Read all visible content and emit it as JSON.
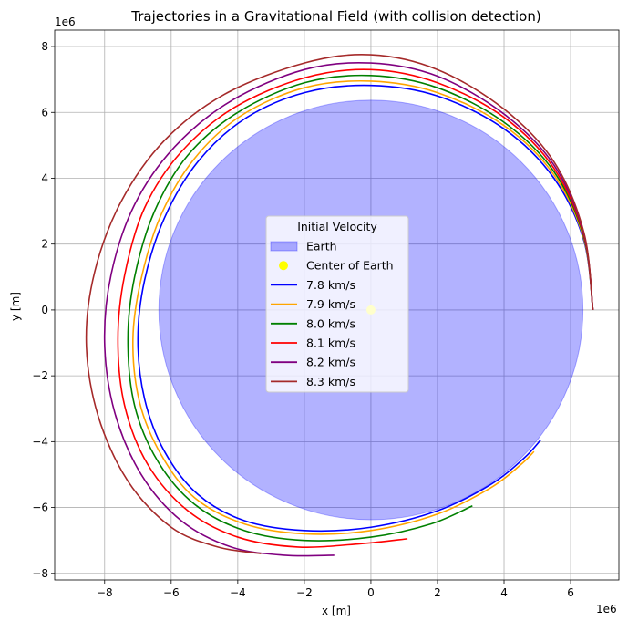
{
  "chart_data": {
    "type": "line",
    "title": "Trajectories in a Gravitational Field (with collision detection)",
    "xlabel": "x [m]",
    "ylabel": "y [m]",
    "x_offset_label": "1e6",
    "y_offset_label": "1e6",
    "xlim": [
      -9.5,
      7.45
    ],
    "ylim": [
      -8.2,
      8.5
    ],
    "x_ticks": [
      -8,
      -6,
      -4,
      -2,
      0,
      2,
      4,
      6
    ],
    "y_ticks": [
      -8,
      -6,
      -4,
      -2,
      0,
      2,
      4,
      6,
      8
    ],
    "x_tick_labels": [
      "−8",
      "−6",
      "−4",
      "−2",
      "0",
      "2",
      "4",
      "6"
    ],
    "y_tick_labels": [
      "−8",
      "−6",
      "−4",
      "−2",
      "0",
      "2",
      "4",
      "6",
      "8"
    ],
    "grid": true,
    "earth": {
      "name": "Earth",
      "center": [
        0,
        0
      ],
      "radius": 6.371,
      "color": "#0000ff",
      "alpha": 0.3
    },
    "center_marker": {
      "name": "Center of Earth",
      "x": 0,
      "y": 0,
      "color": "#ffff00"
    },
    "series": [
      {
        "name": "7.8 km/s",
        "color": "#0000ff",
        "x": [
          6.67,
          6.4,
          5.5,
          4.0,
          2.0,
          0.0,
          -2.0,
          -3.8,
          -5.2,
          -6.2,
          -6.8,
          -7.0,
          -6.8,
          -6.2,
          -5.2,
          -3.8,
          -2.0,
          0.0,
          2.0,
          3.6,
          4.6,
          5.1
        ],
        "y": [
          0.0,
          2.1,
          4.0,
          5.5,
          6.5,
          6.82,
          6.6,
          5.8,
          4.5,
          2.8,
          0.9,
          -0.9,
          -2.7,
          -4.3,
          -5.6,
          -6.4,
          -6.7,
          -6.6,
          -6.1,
          -5.3,
          -4.5,
          -3.95
        ]
      },
      {
        "name": "7.9 km/s",
        "color": "#ffa500",
        "x": [
          6.67,
          6.4,
          5.5,
          4.0,
          2.0,
          0.0,
          -2.0,
          -3.9,
          -5.3,
          -6.3,
          -6.9,
          -7.15,
          -6.95,
          -6.3,
          -5.3,
          -3.8,
          -2.0,
          0.0,
          2.0,
          3.6,
          4.5,
          4.9
        ],
        "y": [
          0.0,
          2.15,
          4.1,
          5.6,
          6.6,
          6.95,
          6.75,
          5.9,
          4.6,
          2.9,
          0.95,
          -0.9,
          -2.8,
          -4.4,
          -5.7,
          -6.5,
          -6.8,
          -6.7,
          -6.2,
          -5.4,
          -4.7,
          -4.3
        ]
      },
      {
        "name": "8.0 km/s",
        "color": "#008000",
        "x": [
          6.67,
          6.4,
          5.5,
          4.0,
          2.0,
          0.0,
          -2.0,
          -4.0,
          -5.5,
          -6.5,
          -7.1,
          -7.3,
          -7.1,
          -6.4,
          -5.3,
          -3.8,
          -2.0,
          0.0,
          1.8,
          3.05
        ],
        "y": [
          0.0,
          2.2,
          4.2,
          5.7,
          6.75,
          7.12,
          6.9,
          6.0,
          4.7,
          3.0,
          1.0,
          -0.9,
          -2.9,
          -4.6,
          -5.9,
          -6.7,
          -7.0,
          -6.9,
          -6.5,
          -5.95
        ]
      },
      {
        "name": "8.1 km/s",
        "color": "#ff0000",
        "x": [
          6.67,
          6.4,
          5.5,
          4.0,
          2.0,
          0.0,
          -2.0,
          -4.1,
          -5.7,
          -6.8,
          -7.4,
          -7.6,
          -7.4,
          -6.7,
          -5.5,
          -4.0,
          -2.2,
          -0.3,
          1.1
        ],
        "y": [
          0.0,
          2.25,
          4.3,
          5.85,
          6.9,
          7.3,
          7.05,
          6.15,
          4.8,
          3.1,
          1.05,
          -0.9,
          -2.9,
          -4.7,
          -6.1,
          -6.9,
          -7.2,
          -7.1,
          -6.95
        ]
      },
      {
        "name": "8.2 km/s",
        "color": "#800080",
        "x": [
          6.67,
          6.4,
          5.5,
          4.0,
          2.0,
          0.0,
          -2.0,
          -4.2,
          -5.9,
          -7.1,
          -7.8,
          -8.0,
          -7.7,
          -6.9,
          -5.7,
          -4.2,
          -2.6,
          -1.1
        ],
        "y": [
          0.0,
          2.3,
          4.4,
          5.95,
          7.1,
          7.5,
          7.3,
          6.35,
          4.95,
          3.2,
          1.1,
          -1.0,
          -3.1,
          -5.0,
          -6.4,
          -7.2,
          -7.45,
          -7.45
        ]
      },
      {
        "name": "8.3 km/s",
        "color": "#a52a2a",
        "x": [
          6.67,
          6.4,
          5.5,
          4.0,
          2.0,
          0.0,
          -2.0,
          -4.4,
          -6.2,
          -7.5,
          -8.3,
          -8.55,
          -8.2,
          -7.3,
          -6.0,
          -4.6,
          -3.3
        ],
        "y": [
          0.0,
          2.35,
          4.5,
          6.1,
          7.3,
          7.75,
          7.5,
          6.55,
          5.15,
          3.3,
          1.15,
          -1.0,
          -3.2,
          -5.2,
          -6.6,
          -7.2,
          -7.4
        ]
      }
    ],
    "legend": {
      "title": "Initial Velocity",
      "placement": "center",
      "entries": [
        "Earth",
        "Center of Earth",
        "7.8 km/s",
        "7.9 km/s",
        "8.0 km/s",
        "8.1 km/s",
        "8.2 km/s",
        "8.3 km/s"
      ]
    }
  }
}
